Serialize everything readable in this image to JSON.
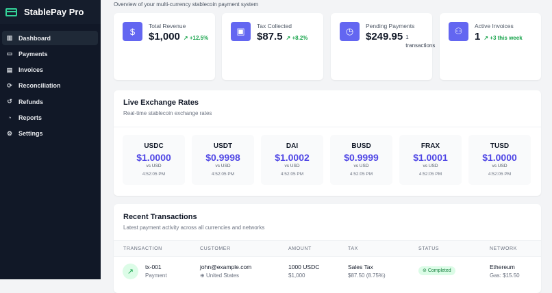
{
  "app": {
    "name": "StablePay Pro",
    "subtitle": "Overview of your multi-currency stablecoin payment system"
  },
  "sidebar": {
    "items": [
      {
        "label": "Dashboard",
        "icon": "bar-chart-icon",
        "active": true
      },
      {
        "label": "Payments",
        "icon": "credit-card-icon"
      },
      {
        "label": "Invoices",
        "icon": "file-icon"
      },
      {
        "label": "Reconciliation",
        "icon": "refresh-icon"
      },
      {
        "label": "Refunds",
        "icon": "rotate-ccw-icon"
      },
      {
        "label": "Reports",
        "icon": "pie-chart-icon"
      },
      {
        "label": "Settings",
        "icon": "gear-icon"
      }
    ]
  },
  "stats": [
    {
      "label": "Total Revenue",
      "value": "$1,000",
      "change": "+12.5%",
      "icon": "dollar-icon"
    },
    {
      "label": "Tax Collected",
      "value": "$87.5",
      "change": "+8.2%",
      "icon": "receipt-icon"
    },
    {
      "label": "Pending Payments",
      "value": "$249.95",
      "note": "1 transactions",
      "icon": "clock-icon"
    },
    {
      "label": "Active Invoices",
      "value": "1",
      "change": "+3 this week",
      "icon": "users-icon"
    }
  ],
  "rates": {
    "title": "Live Exchange Rates",
    "subtitle": "Real-time stablecoin exchange rates",
    "items": [
      {
        "symbol": "USDC",
        "rate": "$1.0000",
        "vs": "vs USD",
        "time": "4:52:05 PM"
      },
      {
        "symbol": "USDT",
        "rate": "$0.9998",
        "vs": "vs USD",
        "time": "4:52:05 PM"
      },
      {
        "symbol": "DAI",
        "rate": "$1.0002",
        "vs": "vs USD",
        "time": "4:52:05 PM"
      },
      {
        "symbol": "BUSD",
        "rate": "$0.9999",
        "vs": "vs USD",
        "time": "4:52:05 PM"
      },
      {
        "symbol": "FRAX",
        "rate": "$1.0001",
        "vs": "vs USD",
        "time": "4:52:05 PM"
      },
      {
        "symbol": "TUSD",
        "rate": "$1.0000",
        "vs": "vs USD",
        "time": "4:52:05 PM"
      }
    ]
  },
  "transactions": {
    "title": "Recent Transactions",
    "subtitle": "Latest payment activity across all currencies and networks",
    "columns": [
      "TRANSACTION",
      "CUSTOMER",
      "AMOUNT",
      "TAX",
      "STATUS",
      "NETWORK"
    ],
    "rows": [
      {
        "id": "tx-001",
        "type": "Payment",
        "customer": "john@example.com",
        "country": "United States",
        "amount": "1000 USDC",
        "amount_usd": "$1,000",
        "tax": "Sales Tax",
        "tax_detail": "$87.50 (8.75%)",
        "status": "Completed",
        "network": "Ethereum",
        "gas": "Gas: $15.50"
      }
    ]
  },
  "colors": {
    "accent": "#6366f1",
    "positive": "#16a34a",
    "sidebar": "#111827"
  }
}
